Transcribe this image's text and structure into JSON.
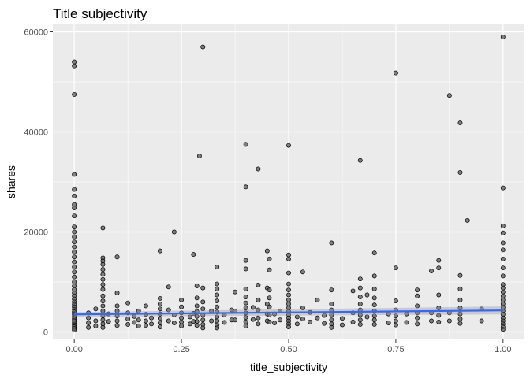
{
  "chart_data": {
    "type": "scatter",
    "title": "Title subjectivity",
    "xlabel": "title_subjectivity",
    "ylabel": "shares",
    "xlim": [
      -0.05,
      1.05
    ],
    "ylim": [
      -1500,
      61500
    ],
    "x_ticks": [
      0.0,
      0.25,
      0.5,
      0.75,
      1.0
    ],
    "x_tick_labels": [
      "0.00",
      "0.25",
      "0.50",
      "0.75",
      "1.00"
    ],
    "y_ticks": [
      0,
      20000,
      40000,
      60000
    ],
    "y_tick_labels": [
      "0",
      "20000",
      "40000",
      "60000"
    ],
    "grid": true,
    "legend": "none",
    "colors": {
      "panel": "#ebebeb",
      "grid_major": "#ffffff",
      "point_fill": "#595959",
      "point_stroke": "#000000",
      "smooth_line": "#3366ff",
      "ribbon": "#999999"
    },
    "points": [
      [
        0,
        54000
      ],
      [
        0,
        53200
      ],
      [
        0,
        47500
      ],
      [
        0,
        31500
      ],
      [
        0,
        28500
      ],
      [
        0,
        27200
      ],
      [
        0,
        25500
      ],
      [
        0,
        24800
      ],
      [
        0,
        23200
      ],
      [
        0,
        21000
      ],
      [
        0,
        20000
      ],
      [
        0,
        19000
      ],
      [
        0,
        18000
      ],
      [
        0,
        17000
      ],
      [
        0,
        16000
      ],
      [
        0,
        15000
      ],
      [
        0,
        14000
      ],
      [
        0,
        13000
      ],
      [
        0,
        12000
      ],
      [
        0,
        11000
      ],
      [
        0,
        10000
      ],
      [
        0,
        9200
      ],
      [
        0,
        8500
      ],
      [
        0,
        7800
      ],
      [
        0,
        7200
      ],
      [
        0,
        6600
      ],
      [
        0,
        6000
      ],
      [
        0,
        5500
      ],
      [
        0,
        5000
      ],
      [
        0,
        4500
      ],
      [
        0,
        4000
      ],
      [
        0,
        3500
      ],
      [
        0,
        3000
      ],
      [
        0,
        2600
      ],
      [
        0,
        2200
      ],
      [
        0,
        1800
      ],
      [
        0,
        1400
      ],
      [
        0,
        1000
      ],
      [
        0,
        700
      ],
      [
        0,
        400
      ],
      [
        0.033,
        3800
      ],
      [
        0.033,
        2800
      ],
      [
        0.033,
        1800
      ],
      [
        0.033,
        900
      ],
      [
        0.05,
        4600
      ],
      [
        0.05,
        2200
      ],
      [
        0.05,
        1200
      ],
      [
        0.0667,
        20800
      ],
      [
        0.0667,
        14800
      ],
      [
        0.0667,
        14200
      ],
      [
        0.0667,
        13500
      ],
      [
        0.0667,
        12500
      ],
      [
        0.0667,
        11500
      ],
      [
        0.0667,
        10500
      ],
      [
        0.0667,
        9500
      ],
      [
        0.0667,
        8500
      ],
      [
        0.0667,
        7200
      ],
      [
        0.0667,
        6200
      ],
      [
        0.0667,
        5200
      ],
      [
        0.0667,
        4200
      ],
      [
        0.0667,
        3200
      ],
      [
        0.0667,
        2400
      ],
      [
        0.0667,
        1600
      ],
      [
        0.0667,
        900
      ],
      [
        0.08,
        3600
      ],
      [
        0.08,
        2100
      ],
      [
        0.1,
        15000
      ],
      [
        0.1,
        7800
      ],
      [
        0.1,
        5200
      ],
      [
        0.1,
        4200
      ],
      [
        0.1,
        3200
      ],
      [
        0.1,
        2200
      ],
      [
        0.1,
        1300
      ],
      [
        0.125,
        5800
      ],
      [
        0.125,
        3800
      ],
      [
        0.125,
        2600
      ],
      [
        0.125,
        1500
      ],
      [
        0.14,
        3100
      ],
      [
        0.14,
        1900
      ],
      [
        0.15,
        4200
      ],
      [
        0.15,
        2400
      ],
      [
        0.15,
        1200
      ],
      [
        0.167,
        5200
      ],
      [
        0.167,
        3500
      ],
      [
        0.167,
        2200
      ],
      [
        0.167,
        1300
      ],
      [
        0.18,
        2800
      ],
      [
        0.18,
        1600
      ],
      [
        0.2,
        16200
      ],
      [
        0.2,
        6700
      ],
      [
        0.2,
        5600
      ],
      [
        0.2,
        4600
      ],
      [
        0.2,
        3600
      ],
      [
        0.2,
        2700
      ],
      [
        0.2,
        1800
      ],
      [
        0.2,
        1000
      ],
      [
        0.22,
        9000
      ],
      [
        0.22,
        4400
      ],
      [
        0.22,
        2200
      ],
      [
        0.233,
        20000
      ],
      [
        0.233,
        3400
      ],
      [
        0.233,
        1800
      ],
      [
        0.25,
        6400
      ],
      [
        0.25,
        5000
      ],
      [
        0.25,
        3800
      ],
      [
        0.25,
        2800
      ],
      [
        0.25,
        2000
      ],
      [
        0.25,
        1200
      ],
      [
        0.27,
        3000
      ],
      [
        0.27,
        1600
      ],
      [
        0.278,
        15500
      ],
      [
        0.278,
        3700
      ],
      [
        0.278,
        2100
      ],
      [
        0.286,
        9200
      ],
      [
        0.286,
        6800
      ],
      [
        0.286,
        5200
      ],
      [
        0.286,
        4100
      ],
      [
        0.286,
        3100
      ],
      [
        0.286,
        2100
      ],
      [
        0.286,
        1300
      ],
      [
        0.292,
        35200
      ],
      [
        0.3,
        57000
      ],
      [
        0.3,
        8800
      ],
      [
        0.3,
        6000
      ],
      [
        0.3,
        4600
      ],
      [
        0.3,
        3400
      ],
      [
        0.3,
        2400
      ],
      [
        0.3,
        1500
      ],
      [
        0.3,
        800
      ],
      [
        0.32,
        4200
      ],
      [
        0.32,
        2200
      ],
      [
        0.333,
        13000
      ],
      [
        0.333,
        9600
      ],
      [
        0.333,
        8600
      ],
      [
        0.333,
        7400
      ],
      [
        0.333,
        6200
      ],
      [
        0.333,
        5000
      ],
      [
        0.333,
        4000
      ],
      [
        0.333,
        3000
      ],
      [
        0.333,
        2200
      ],
      [
        0.333,
        1400
      ],
      [
        0.333,
        800
      ],
      [
        0.35,
        3400
      ],
      [
        0.35,
        1900
      ],
      [
        0.367,
        4400
      ],
      [
        0.367,
        2400
      ],
      [
        0.375,
        8000
      ],
      [
        0.375,
        4200
      ],
      [
        0.375,
        2400
      ],
      [
        0.4,
        37500
      ],
      [
        0.4,
        29000
      ],
      [
        0.4,
        14300
      ],
      [
        0.4,
        12600
      ],
      [
        0.4,
        8600
      ],
      [
        0.4,
        7000
      ],
      [
        0.4,
        5800
      ],
      [
        0.4,
        4800
      ],
      [
        0.4,
        3800
      ],
      [
        0.4,
        2900
      ],
      [
        0.4,
        2000
      ],
      [
        0.4,
        1200
      ],
      [
        0.417,
        4900
      ],
      [
        0.417,
        2500
      ],
      [
        0.429,
        32600
      ],
      [
        0.429,
        9400
      ],
      [
        0.429,
        6400
      ],
      [
        0.429,
        4400
      ],
      [
        0.429,
        2800
      ],
      [
        0.429,
        1600
      ],
      [
        0.45,
        16200
      ],
      [
        0.45,
        8800
      ],
      [
        0.45,
        5600
      ],
      [
        0.45,
        3600
      ],
      [
        0.45,
        2200
      ],
      [
        0.455,
        14600
      ],
      [
        0.455,
        12400
      ],
      [
        0.455,
        8400
      ],
      [
        0.455,
        6800
      ],
      [
        0.455,
        5000
      ],
      [
        0.455,
        3400
      ],
      [
        0.455,
        2000
      ],
      [
        0.467,
        3600
      ],
      [
        0.467,
        1800
      ],
      [
        0.48,
        4200
      ],
      [
        0.48,
        2400
      ],
      [
        0.5,
        37300
      ],
      [
        0.5,
        15400
      ],
      [
        0.5,
        14600
      ],
      [
        0.5,
        11800
      ],
      [
        0.5,
        9600
      ],
      [
        0.5,
        8400
      ],
      [
        0.5,
        7400
      ],
      [
        0.5,
        6400
      ],
      [
        0.5,
        5600
      ],
      [
        0.5,
        4800
      ],
      [
        0.5,
        4100
      ],
      [
        0.5,
        3400
      ],
      [
        0.5,
        2800
      ],
      [
        0.5,
        2200
      ],
      [
        0.5,
        1600
      ],
      [
        0.5,
        1000
      ],
      [
        0.52,
        3000
      ],
      [
        0.52,
        1600
      ],
      [
        0.533,
        12000
      ],
      [
        0.533,
        4800
      ],
      [
        0.533,
        2600
      ],
      [
        0.55,
        3900
      ],
      [
        0.55,
        2000
      ],
      [
        0.567,
        6400
      ],
      [
        0.567,
        2800
      ],
      [
        0.583,
        3300
      ],
      [
        0.583,
        1700
      ],
      [
        0.6,
        17800
      ],
      [
        0.6,
        8400
      ],
      [
        0.6,
        5600
      ],
      [
        0.6,
        4400
      ],
      [
        0.6,
        3400
      ],
      [
        0.6,
        2400
      ],
      [
        0.6,
        1600
      ],
      [
        0.6,
        900
      ],
      [
        0.625,
        2700
      ],
      [
        0.625,
        1400
      ],
      [
        0.65,
        8200
      ],
      [
        0.65,
        3800
      ],
      [
        0.65,
        2000
      ],
      [
        0.667,
        34300
      ],
      [
        0.667,
        10600
      ],
      [
        0.667,
        8800
      ],
      [
        0.667,
        7000
      ],
      [
        0.667,
        5600
      ],
      [
        0.667,
        4400
      ],
      [
        0.667,
        3400
      ],
      [
        0.667,
        2400
      ],
      [
        0.667,
        1500
      ],
      [
        0.683,
        7400
      ],
      [
        0.683,
        3000
      ],
      [
        0.7,
        15800
      ],
      [
        0.7,
        11200
      ],
      [
        0.7,
        8600
      ],
      [
        0.7,
        6800
      ],
      [
        0.7,
        5400
      ],
      [
        0.7,
        4200
      ],
      [
        0.7,
        3200
      ],
      [
        0.7,
        2400
      ],
      [
        0.7,
        1500
      ],
      [
        0.733,
        3600
      ],
      [
        0.733,
        1800
      ],
      [
        0.75,
        51800
      ],
      [
        0.75,
        12800
      ],
      [
        0.75,
        6200
      ],
      [
        0.75,
        4400
      ],
      [
        0.75,
        3200
      ],
      [
        0.75,
        2200
      ],
      [
        0.75,
        1400
      ],
      [
        0.775,
        3600
      ],
      [
        0.775,
        1900
      ],
      [
        0.8,
        8400
      ],
      [
        0.8,
        7200
      ],
      [
        0.8,
        5200
      ],
      [
        0.8,
        3800
      ],
      [
        0.8,
        2800
      ],
      [
        0.8,
        1600
      ],
      [
        0.833,
        12200
      ],
      [
        0.833,
        3800
      ],
      [
        0.833,
        2200
      ],
      [
        0.85,
        14300
      ],
      [
        0.85,
        12800
      ],
      [
        0.85,
        7400
      ],
      [
        0.85,
        4800
      ],
      [
        0.85,
        3300
      ],
      [
        0.85,
        2000
      ],
      [
        0.875,
        47300
      ],
      [
        0.875,
        3800
      ],
      [
        0.875,
        2200
      ],
      [
        0.9,
        41800
      ],
      [
        0.9,
        31900
      ],
      [
        0.9,
        11300
      ],
      [
        0.9,
        8600
      ],
      [
        0.9,
        6400
      ],
      [
        0.9,
        4800
      ],
      [
        0.9,
        3600
      ],
      [
        0.9,
        2600
      ],
      [
        0.9,
        1700
      ],
      [
        0.917,
        22300
      ],
      [
        0.95,
        4600
      ],
      [
        0.95,
        2200
      ],
      [
        1.0,
        59000
      ],
      [
        1.0,
        28800
      ],
      [
        1.0,
        21200
      ],
      [
        1.0,
        19800
      ],
      [
        1.0,
        17800
      ],
      [
        1.0,
        16400
      ],
      [
        1.0,
        14600
      ],
      [
        1.0,
        12800
      ],
      [
        1.0,
        11200
      ],
      [
        1.0,
        9500
      ],
      [
        1.0,
        8800
      ],
      [
        1.0,
        8000
      ],
      [
        1.0,
        7200
      ],
      [
        1.0,
        6400
      ],
      [
        1.0,
        5600
      ],
      [
        1.0,
        4900
      ],
      [
        1.0,
        4200
      ],
      [
        1.0,
        3500
      ],
      [
        1.0,
        2800
      ],
      [
        1.0,
        2200
      ],
      [
        1.0,
        1600
      ],
      [
        1.0,
        1000
      ],
      [
        1.0,
        500
      ]
    ],
    "smooth": {
      "method": "linear",
      "x": [
        0,
        1
      ],
      "y": [
        3500,
        4300
      ],
      "ribbon_lower": [
        3050,
        3500
      ],
      "ribbon_upper": [
        3950,
        5100
      ]
    }
  }
}
